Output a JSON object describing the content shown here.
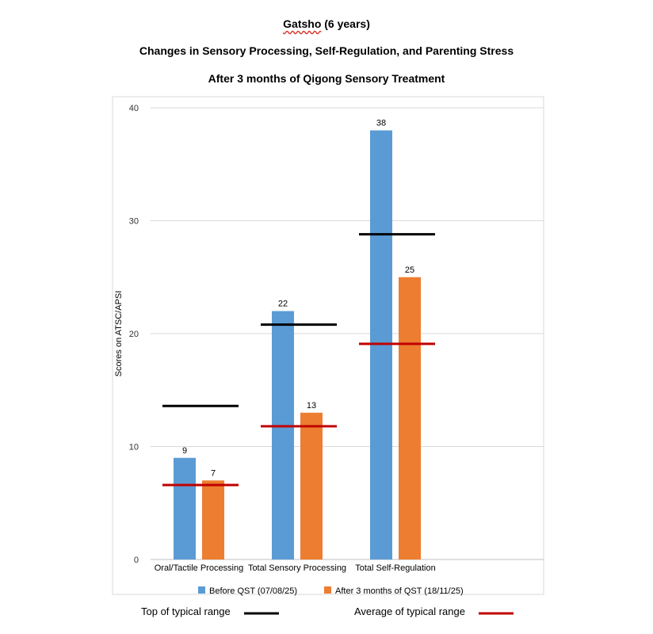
{
  "titles": {
    "line1_name": "Gatsho",
    "line1_rest": " (6 years)",
    "line2": "Changes in Sensory Processing, Self-Regulation, and Parenting Stress",
    "line3": "After 3 months of Qigong Sensory Treatment"
  },
  "chart_data": {
    "type": "bar",
    "title": "",
    "xlabel": "",
    "ylabel": "Scores on ATSC/APSI",
    "ylim": [
      0,
      40
    ],
    "yticks": [
      "0",
      "10",
      "20",
      "30",
      "40"
    ],
    "grid": true,
    "categories": [
      "Oral/Tactile Processing",
      "Total Sensory Processing",
      "Total Self-Regulation"
    ],
    "series": [
      {
        "name": "Before QST (07/08/25)",
        "values": [
          9,
          22,
          38
        ],
        "labels": [
          "9",
          "22",
          "38"
        ],
        "color": "#5b9bd5"
      },
      {
        "name": "After 3 months of QST (18/11/25)",
        "values": [
          7,
          13,
          25
        ],
        "labels": [
          "7",
          "13",
          "25"
        ],
        "color": "#ed7d31"
      }
    ],
    "reference_lines": [
      {
        "name": "Top of typical range",
        "values": [
          13.6,
          20.8,
          28.8
        ],
        "color": "#000000"
      },
      {
        "name": "Average of typical range",
        "values": [
          6.6,
          11.8,
          19.1
        ],
        "color": "#c00000"
      }
    ],
    "legend_position": "bottom"
  }
}
